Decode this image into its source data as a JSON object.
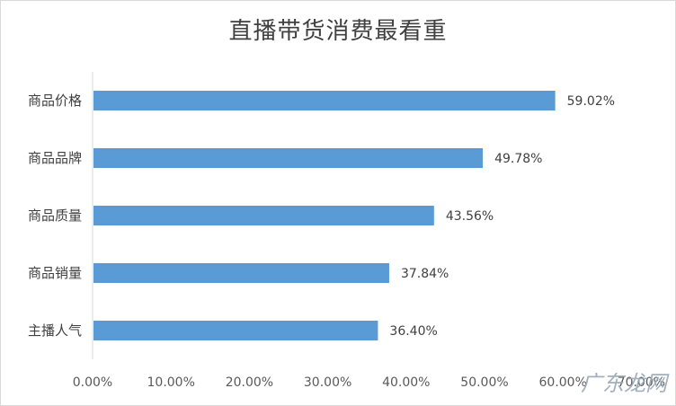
{
  "watermark": "广东龙网",
  "chart_data": {
    "type": "bar",
    "orientation": "horizontal",
    "title": "直播带货消费最看重",
    "categories": [
      "商品价格",
      "商品品牌",
      "商品质量",
      "商品销量",
      "主播人气"
    ],
    "values": [
      59.02,
      49.78,
      43.56,
      37.84,
      36.4
    ],
    "value_labels": [
      "59.02%",
      "49.78%",
      "43.56%",
      "37.84%",
      "36.40%"
    ],
    "xticks": [
      "0.00%",
      "10.00%",
      "20.00%",
      "30.00%",
      "40.00%",
      "50.00%",
      "60.00%",
      "70.00%"
    ],
    "xlim": [
      0,
      70
    ],
    "grid": false,
    "bar_color": "#5b9bd5"
  }
}
